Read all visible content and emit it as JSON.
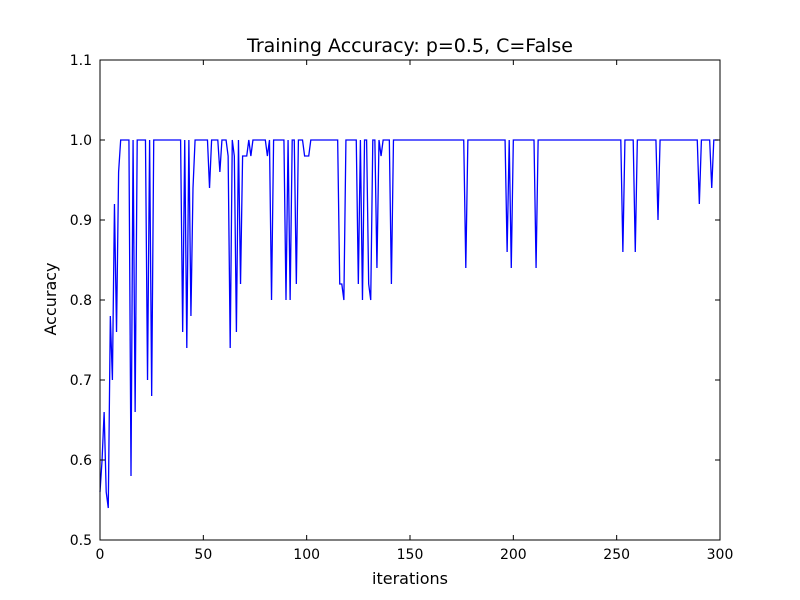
{
  "chart_data": {
    "type": "line",
    "title": "Training Accuracy: p=0.5, C=False",
    "xlabel": "iterations",
    "ylabel": "Accuracy",
    "xlim": [
      0,
      300
    ],
    "ylim": [
      0.5,
      1.1
    ],
    "xticks": [
      0,
      50,
      100,
      150,
      200,
      250,
      300
    ],
    "xtick_labels": [
      "0",
      "50",
      "100",
      "150",
      "200",
      "250",
      "300"
    ],
    "yticks": [
      0.5,
      0.6,
      0.7,
      0.8,
      0.9,
      1.0,
      1.1
    ],
    "ytick_labels": [
      "0.5",
      "0.6",
      "0.7",
      "0.8",
      "0.9",
      "1.0",
      "1.1"
    ],
    "grid": false,
    "legend": "none",
    "series": [
      {
        "color": "#0000ff",
        "points": [
          [
            0,
            0.56
          ],
          [
            1,
            0.6
          ],
          [
            2,
            0.66
          ],
          [
            3,
            0.56
          ],
          [
            4,
            0.54
          ],
          [
            5,
            0.78
          ],
          [
            6,
            0.7
          ],
          [
            7,
            0.92
          ],
          [
            8,
            0.76
          ],
          [
            9,
            0.96
          ],
          [
            10,
            1.0
          ],
          [
            14,
            1.0
          ],
          [
            15,
            0.58
          ],
          [
            16,
            1.0
          ],
          [
            17,
            0.66
          ],
          [
            18,
            1.0
          ],
          [
            22,
            1.0
          ],
          [
            23,
            0.7
          ],
          [
            24,
            1.0
          ],
          [
            25,
            0.68
          ],
          [
            26,
            1.0
          ],
          [
            39,
            1.0
          ],
          [
            40,
            0.76
          ],
          [
            41,
            1.0
          ],
          [
            42,
            0.74
          ],
          [
            43,
            1.0
          ],
          [
            44,
            0.78
          ],
          [
            45,
            0.94
          ],
          [
            46,
            1.0
          ],
          [
            52,
            1.0
          ],
          [
            53,
            0.94
          ],
          [
            54,
            1.0
          ],
          [
            57,
            1.0
          ],
          [
            58,
            0.96
          ],
          [
            59,
            1.0
          ],
          [
            61,
            1.0
          ],
          [
            62,
            0.98
          ],
          [
            63,
            0.74
          ],
          [
            64,
            1.0
          ],
          [
            65,
            0.98
          ],
          [
            66,
            0.76
          ],
          [
            67,
            1.0
          ],
          [
            68,
            0.82
          ],
          [
            69,
            0.98
          ],
          [
            71,
            0.98
          ],
          [
            72,
            1.0
          ],
          [
            73,
            0.98
          ],
          [
            74,
            1.0
          ],
          [
            80,
            1.0
          ],
          [
            81,
            0.98
          ],
          [
            82,
            1.0
          ],
          [
            83,
            0.8
          ],
          [
            84,
            1.0
          ],
          [
            89,
            1.0
          ],
          [
            90,
            0.8
          ],
          [
            91,
            1.0
          ],
          [
            92,
            0.8
          ],
          [
            93,
            1.0
          ],
          [
            94,
            1.0
          ],
          [
            95,
            0.82
          ],
          [
            96,
            1.0
          ],
          [
            98,
            1.0
          ],
          [
            99,
            0.98
          ],
          [
            101,
            0.98
          ],
          [
            102,
            1.0
          ],
          [
            115,
            1.0
          ],
          [
            116,
            0.82
          ],
          [
            117,
            0.82
          ],
          [
            118,
            0.8
          ],
          [
            119,
            1.0
          ],
          [
            124,
            1.0
          ],
          [
            125,
            0.82
          ],
          [
            126,
            1.0
          ],
          [
            127,
            0.8
          ],
          [
            128,
            1.0
          ],
          [
            129,
            1.0
          ],
          [
            130,
            0.82
          ],
          [
            131,
            0.8
          ],
          [
            132,
            1.0
          ],
          [
            133,
            1.0
          ],
          [
            134,
            0.84
          ],
          [
            135,
            1.0
          ],
          [
            136,
            0.98
          ],
          [
            137,
            1.0
          ],
          [
            140,
            1.0
          ],
          [
            141,
            0.82
          ],
          [
            142,
            1.0
          ],
          [
            176,
            1.0
          ],
          [
            177,
            0.84
          ],
          [
            178,
            1.0
          ],
          [
            196,
            1.0
          ],
          [
            197,
            0.86
          ],
          [
            198,
            1.0
          ],
          [
            199,
            0.84
          ],
          [
            200,
            1.0
          ],
          [
            210,
            1.0
          ],
          [
            211,
            0.84
          ],
          [
            212,
            1.0
          ],
          [
            252,
            1.0
          ],
          [
            253,
            0.86
          ],
          [
            254,
            1.0
          ],
          [
            258,
            1.0
          ],
          [
            259,
            0.86
          ],
          [
            260,
            1.0
          ],
          [
            269,
            1.0
          ],
          [
            270,
            0.9
          ],
          [
            271,
            1.0
          ],
          [
            289,
            1.0
          ],
          [
            290,
            0.92
          ],
          [
            291,
            1.0
          ],
          [
            295,
            1.0
          ],
          [
            296,
            0.94
          ],
          [
            297,
            1.0
          ],
          [
            299,
            1.0
          ]
        ]
      }
    ]
  }
}
